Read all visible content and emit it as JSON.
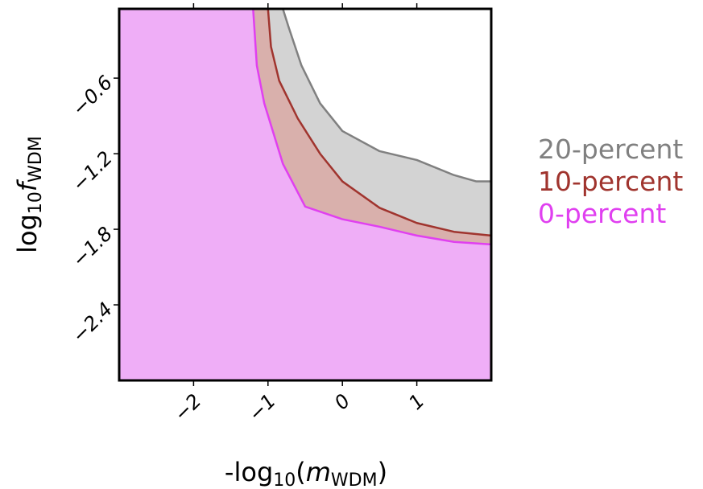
{
  "chart_data": {
    "type": "area",
    "title": "",
    "xlabel": {
      "prefix": "-log",
      "sub": "10",
      "open": "(",
      "var": "m",
      "var_sub": "WDM",
      "close": ")"
    },
    "ylabel": {
      "prefix": "log",
      "sub": "10",
      "var": "f",
      "var_sub": "WDM"
    },
    "xlim": [
      -3.0,
      2.0
    ],
    "ylim": [
      -3.0,
      -0.05
    ],
    "xticks": [
      -2,
      -1,
      0,
      1
    ],
    "xtick_labels": [
      "−2",
      "−1",
      "0",
      "1"
    ],
    "yticks": [
      -0.6,
      -1.2,
      -1.8,
      -2.4
    ],
    "ytick_labels": [
      "−0.6",
      "−1.2",
      "−1.8",
      "−2.4"
    ],
    "grid": false,
    "legend_position": "right",
    "series": [
      {
        "name": "20-percent",
        "color": "#808080",
        "fill": "#d3d3d3",
        "x": [
          -0.8,
          -0.72,
          -0.55,
          -0.3,
          0.0,
          0.5,
          1.0,
          1.5,
          1.8,
          2.0
        ],
        "y": [
          -0.05,
          -0.2,
          -0.5,
          -0.8,
          -1.02,
          -1.18,
          -1.25,
          -1.37,
          -1.42,
          -1.42
        ]
      },
      {
        "name": "10-percent",
        "color": "#a0342e",
        "fill": "#d9b0ac",
        "x": [
          -1.0,
          -0.96,
          -0.85,
          -0.6,
          -0.3,
          0.0,
          0.5,
          1.0,
          1.5,
          2.0
        ],
        "y": [
          -0.05,
          -0.35,
          -0.62,
          -0.92,
          -1.2,
          -1.42,
          -1.63,
          -1.75,
          -1.82,
          -1.85
        ]
      },
      {
        "name": "0-percent",
        "color": "#e040f0",
        "fill": "#efaef7",
        "x": [
          -1.2,
          -1.15,
          -1.05,
          -0.8,
          -0.5,
          0.0,
          0.5,
          1.0,
          1.5,
          2.0
        ],
        "y": [
          -0.05,
          -0.5,
          -0.8,
          -1.28,
          -1.62,
          -1.72,
          -1.78,
          -1.85,
          -1.9,
          -1.92
        ]
      }
    ]
  }
}
